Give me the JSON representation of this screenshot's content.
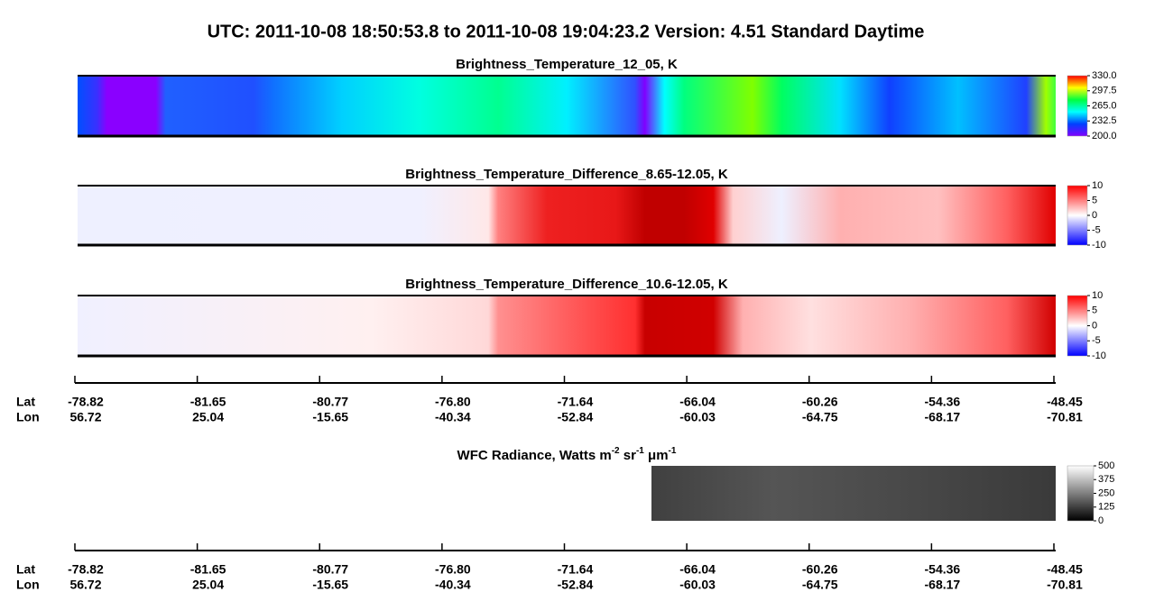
{
  "title": "UTC:  2011-10-08   18:50:53.8  to  2011-10-08   19:04:23.2    Version: 4.51  Standard Daytime",
  "chart_data": [
    {
      "type": "heatmap",
      "title": "Brightness_Temperature_12_05, K",
      "colorbar": {
        "lim": [
          200,
          330
        ],
        "colors": [
          "#8000ff",
          "#0040ff",
          "#00ffff",
          "#00ff40",
          "#ffff00",
          "#ff0000"
        ],
        "ticks": [
          {
            "value": 330,
            "label": "330.0"
          },
          {
            "value": 297.5,
            "label": "297.5"
          },
          {
            "value": 265,
            "label": "265.0"
          },
          {
            "value": 232.5,
            "label": "232.5"
          },
          {
            "value": 200,
            "label": "200.0"
          }
        ]
      }
    },
    {
      "type": "heatmap",
      "title": "Brightness_Temperature_Difference_8.65-12.05, K",
      "colorbar": {
        "lim": [
          -10,
          10
        ],
        "colors": [
          "#0000ff",
          "#ffffff",
          "#ff0000"
        ],
        "ticks": [
          10,
          5,
          0,
          -5,
          -10
        ]
      }
    },
    {
      "type": "heatmap",
      "title": "Brightness_Temperature_Difference_10.6-12.05, K",
      "colorbar": {
        "lim": [
          -10,
          10
        ],
        "colors": [
          "#0000ff",
          "#ffffff",
          "#ff0000"
        ],
        "ticks": [
          10,
          5,
          0,
          -5,
          -10
        ]
      }
    },
    {
      "type": "heatmap",
      "title_parts": [
        "WFC Radiance, Watts m",
        "-2",
        " sr",
        "-1",
        " μm",
        "-1"
      ],
      "colorbar": {
        "lim": [
          0,
          500
        ],
        "colors": [
          "#000000",
          "#ffffff"
        ],
        "ticks": [
          500,
          375,
          250,
          125,
          0
        ]
      }
    }
  ],
  "geo_axes": [
    {
      "row_labels": [
        "Lat",
        "Lon"
      ],
      "lat": [
        -78.82,
        -81.65,
        -80.77,
        -76.8,
        -71.64,
        -66.04,
        -60.26,
        -54.36,
        -48.45
      ],
      "lon": [
        56.72,
        25.04,
        -15.65,
        -40.34,
        -52.84,
        -60.03,
        -64.75,
        -68.17,
        -70.81
      ]
    },
    {
      "row_labels": [
        "Lat",
        "Lon"
      ],
      "lat": [
        -78.82,
        -81.65,
        -80.77,
        -76.8,
        -71.64,
        -66.04,
        -60.26,
        -54.36,
        -48.45
      ],
      "lon": [
        56.72,
        25.04,
        -15.65,
        -40.34,
        -52.84,
        -60.03,
        -64.75,
        -68.17,
        -70.81
      ]
    }
  ]
}
